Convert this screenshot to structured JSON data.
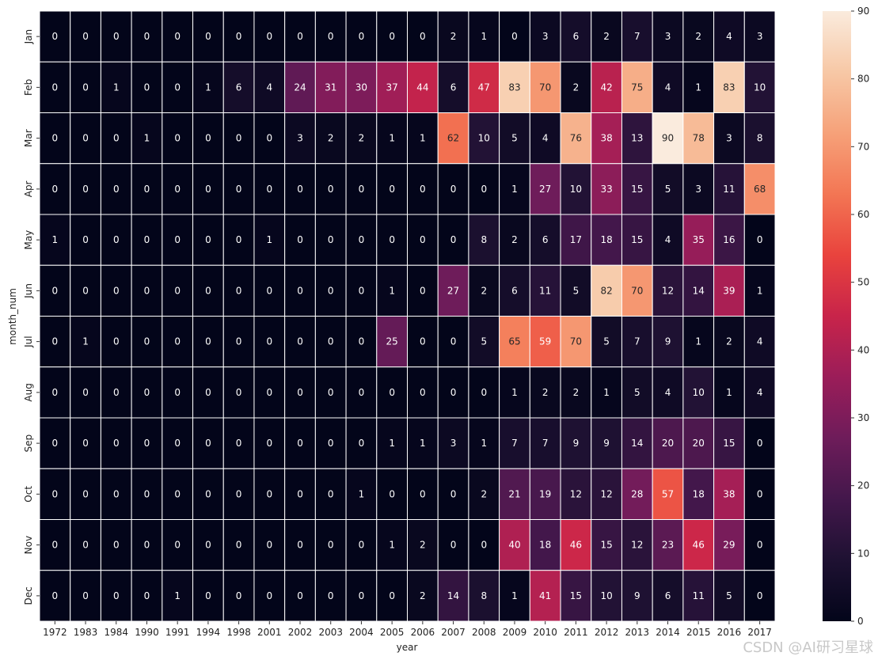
{
  "chart_data": {
    "type": "heatmap",
    "xlabel": "year",
    "ylabel": "month_num",
    "x": [
      "1972",
      "1983",
      "1984",
      "1990",
      "1991",
      "1994",
      "1998",
      "2001",
      "2002",
      "2003",
      "2004",
      "2005",
      "2006",
      "2007",
      "2008",
      "2009",
      "2010",
      "2011",
      "2012",
      "2013",
      "2014",
      "2015",
      "2016",
      "2017"
    ],
    "y": [
      "Jan",
      "Feb",
      "Mar",
      "Apr",
      "May",
      "Jun",
      "Jul",
      "Aug",
      "Sep",
      "Oct",
      "Nov",
      "Dec"
    ],
    "values": [
      [
        0,
        0,
        0,
        0,
        0,
        0,
        0,
        0,
        0,
        0,
        0,
        0,
        0,
        2,
        1,
        0,
        3,
        6,
        2,
        7,
        3,
        2,
        4,
        3
      ],
      [
        0,
        0,
        1,
        0,
        0,
        1,
        6,
        4,
        24,
        31,
        30,
        37,
        44,
        6,
        47,
        83,
        70,
        2,
        42,
        75,
        4,
        1,
        83,
        10
      ],
      [
        0,
        0,
        0,
        1,
        0,
        0,
        0,
        0,
        3,
        2,
        2,
        1,
        1,
        62,
        10,
        5,
        4,
        76,
        38,
        13,
        90,
        78,
        3,
        8
      ],
      [
        0,
        0,
        0,
        0,
        0,
        0,
        0,
        0,
        0,
        0,
        0,
        0,
        0,
        0,
        0,
        1,
        27,
        10,
        33,
        15,
        5,
        3,
        11,
        68
      ],
      [
        1,
        0,
        0,
        0,
        0,
        0,
        0,
        1,
        0,
        0,
        0,
        0,
        0,
        0,
        8,
        2,
        6,
        17,
        18,
        15,
        4,
        35,
        16,
        0
      ],
      [
        0,
        0,
        0,
        0,
        0,
        0,
        0,
        0,
        0,
        0,
        0,
        1,
        0,
        27,
        2,
        6,
        11,
        5,
        82,
        70,
        12,
        14,
        39,
        1
      ],
      [
        0,
        1,
        0,
        0,
        0,
        0,
        0,
        0,
        0,
        0,
        0,
        25,
        0,
        0,
        5,
        65,
        59,
        70,
        5,
        7,
        9,
        1,
        2,
        4
      ],
      [
        0,
        0,
        0,
        0,
        0,
        0,
        0,
        0,
        0,
        0,
        0,
        0,
        0,
        0,
        0,
        1,
        2,
        2,
        1,
        5,
        4,
        10,
        1,
        4
      ],
      [
        0,
        0,
        0,
        0,
        0,
        0,
        0,
        0,
        0,
        0,
        0,
        1,
        1,
        3,
        1,
        7,
        7,
        9,
        9,
        14,
        20,
        20,
        15,
        0
      ],
      [
        0,
        0,
        0,
        0,
        0,
        0,
        0,
        0,
        0,
        0,
        1,
        0,
        0,
        0,
        2,
        21,
        19,
        12,
        12,
        28,
        57,
        18,
        38,
        0
      ],
      [
        0,
        0,
        0,
        0,
        0,
        0,
        0,
        0,
        0,
        0,
        0,
        1,
        2,
        0,
        0,
        40,
        18,
        46,
        15,
        12,
        23,
        46,
        29,
        0
      ],
      [
        0,
        0,
        0,
        0,
        1,
        0,
        0,
        0,
        0,
        0,
        0,
        0,
        2,
        14,
        8,
        1,
        41,
        15,
        10,
        9,
        6,
        11,
        5,
        0
      ]
    ],
    "vmin": 0,
    "vmax": 90,
    "colorbar_ticks": [
      0,
      10,
      20,
      30,
      40,
      50,
      60,
      70,
      80,
      90
    ],
    "colormap": "rocket",
    "annotated": true
  },
  "watermark": "CSDN @AI研习星球"
}
